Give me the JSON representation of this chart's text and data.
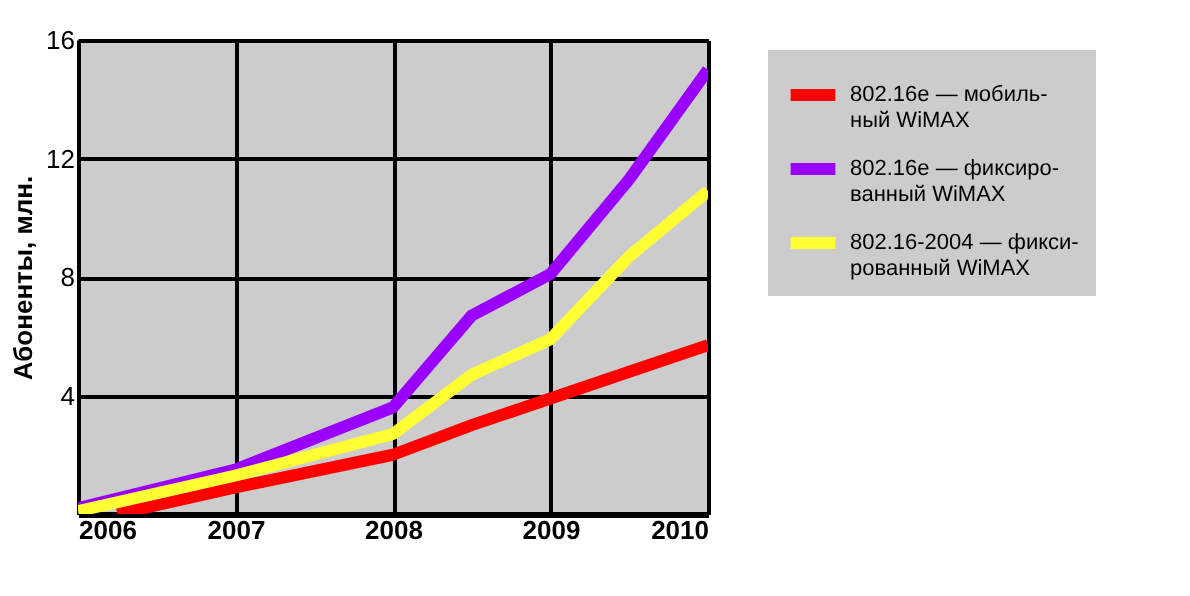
{
  "chart_data": {
    "type": "line",
    "ylabel": "Абоненты, млн.",
    "x": [
      2006,
      2007,
      2008,
      2008.5,
      2009,
      2009.5,
      2010
    ],
    "series": [
      {
        "name": "802.16e — мобиль-\nный WiMAX",
        "color": "#ff0000",
        "x": [
          2006.25,
          2007,
          2008,
          2008.5,
          2009,
          2009.5,
          2010
        ],
        "values": [
          0,
          0.9,
          2.0,
          3.0,
          3.9,
          4.8,
          5.7
        ]
      },
      {
        "name": "802.16e — фиксиро-\nванный WiMAX",
        "color": "#9900ff",
        "values": [
          0.2,
          1.5,
          3.6,
          6.7,
          8.1,
          11.3,
          15.0
        ]
      },
      {
        "name": "802.16-2004 — фикси-\nрованный WiMAX",
        "color": "#ffff33",
        "values": [
          0.1,
          1.3,
          2.7,
          4.7,
          5.9,
          8.7,
          10.9
        ]
      }
    ],
    "xlim": [
      2006,
      2010
    ],
    "xticks": [
      2006,
      2007,
      2008,
      2009,
      2010
    ],
    "ylim": [
      0,
      16
    ],
    "yticks": [
      4,
      8,
      12,
      16
    ],
    "grid": true,
    "legend": "top right"
  }
}
